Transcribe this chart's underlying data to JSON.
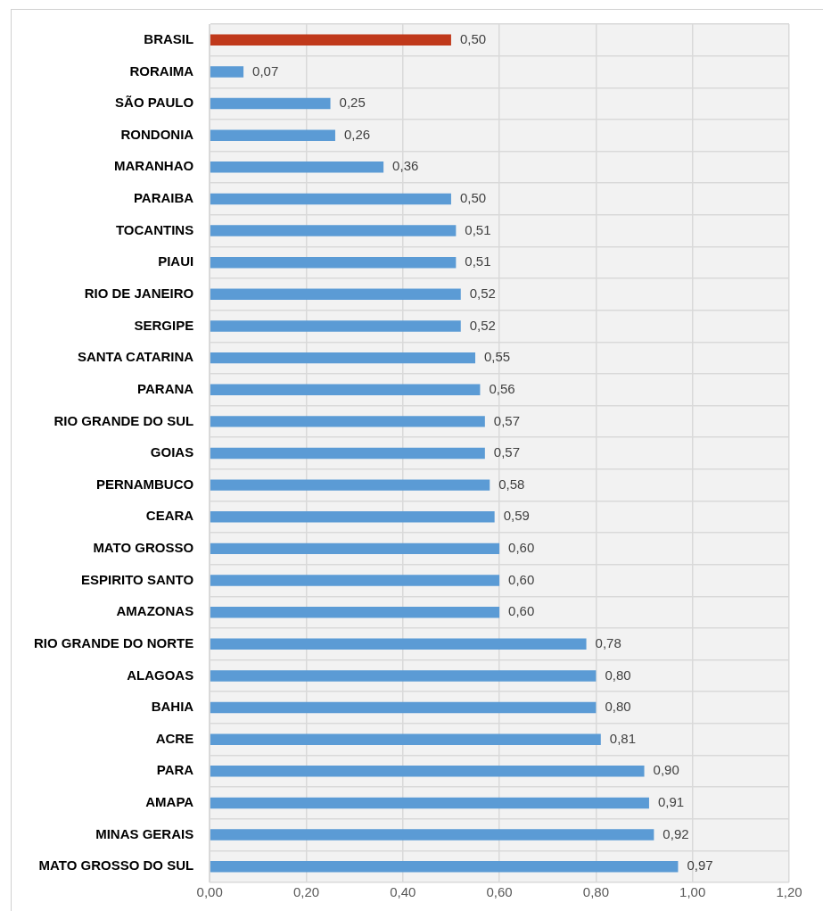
{
  "chart_data": {
    "type": "bar",
    "orientation": "horizontal",
    "categories": [
      "BRASIL",
      "RORAIMA",
      "SÃO PAULO",
      "RONDONIA",
      "MARANHAO",
      "PARAIBA",
      "TOCANTINS",
      "PIAUI",
      "RIO DE JANEIRO",
      "SERGIPE",
      "SANTA CATARINA",
      "PARANA",
      "RIO GRANDE DO SUL",
      "GOIAS",
      "PERNAMBUCO",
      "CEARA",
      "MATO GROSSO",
      "ESPIRITO SANTO",
      "AMAZONAS",
      "RIO GRANDE DO NORTE",
      "ALAGOAS",
      "BAHIA",
      "ACRE",
      "PARA",
      "AMAPA",
      "MINAS GERAIS",
      "MATO GROSSO DO SUL"
    ],
    "values": [
      0.5,
      0.07,
      0.25,
      0.26,
      0.36,
      0.5,
      0.51,
      0.51,
      0.52,
      0.52,
      0.55,
      0.56,
      0.57,
      0.57,
      0.58,
      0.59,
      0.6,
      0.6,
      0.6,
      0.78,
      0.8,
      0.8,
      0.81,
      0.9,
      0.91,
      0.92,
      0.97
    ],
    "value_labels": [
      "0,50",
      "0,07",
      "0,25",
      "0,26",
      "0,36",
      "0,50",
      "0,51",
      "0,51",
      "0,52",
      "0,52",
      "0,55",
      "0,56",
      "0,57",
      "0,57",
      "0,58",
      "0,59",
      "0,60",
      "0,60",
      "0,60",
      "0,78",
      "0,80",
      "0,80",
      "0,81",
      "0,90",
      "0,91",
      "0,92",
      "0,97"
    ],
    "colors": [
      "#c0391b",
      "#5b9bd5",
      "#5b9bd5",
      "#5b9bd5",
      "#5b9bd5",
      "#5b9bd5",
      "#5b9bd5",
      "#5b9bd5",
      "#5b9bd5",
      "#5b9bd5",
      "#5b9bd5",
      "#5b9bd5",
      "#5b9bd5",
      "#5b9bd5",
      "#5b9bd5",
      "#5b9bd5",
      "#5b9bd5",
      "#5b9bd5",
      "#5b9bd5",
      "#5b9bd5",
      "#5b9bd5",
      "#5b9bd5",
      "#5b9bd5",
      "#5b9bd5",
      "#5b9bd5",
      "#5b9bd5",
      "#5b9bd5"
    ],
    "xlim": [
      0,
      1.2
    ],
    "xticks": [
      {
        "value": 0,
        "label": "0,00"
      },
      {
        "value": 0.2,
        "label": "0,20"
      },
      {
        "value": 0.4,
        "label": "0,40"
      },
      {
        "value": 0.6,
        "label": "0,60"
      },
      {
        "value": 0.8,
        "label": "0,80"
      },
      {
        "value": 1.0,
        "label": "1,00"
      },
      {
        "value": 1.2,
        "label": "1,20"
      }
    ],
    "grid": "x",
    "legend": false
  }
}
